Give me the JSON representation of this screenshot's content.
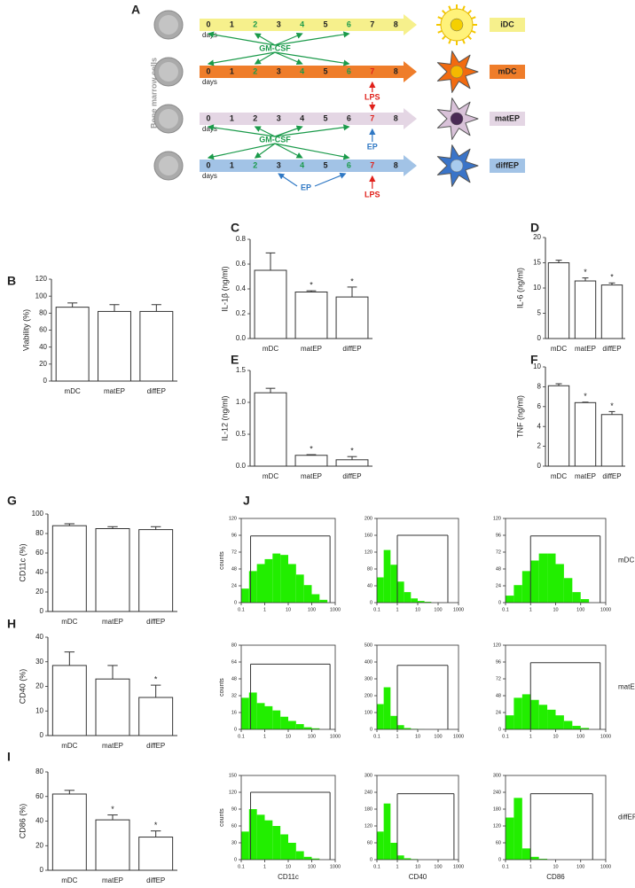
{
  "diagram": {
    "panel": "A",
    "side_label": "Bone marrow cells",
    "days_label": "days",
    "days": [
      0,
      1,
      2,
      3,
      4,
      5,
      6,
      7,
      8
    ],
    "cells": [
      "iDC",
      "mDC",
      "matEP",
      "diffEP"
    ],
    "annotations": [
      "GM-CSF",
      "LPS",
      "EP",
      "GM-CSF",
      "EP",
      "LPS"
    ]
  },
  "chart_data": [
    {
      "type": "bar",
      "panel": "B",
      "ylabel": "Viability (%)",
      "categories": [
        "mDC",
        "matEP",
        "diffEP"
      ],
      "values": [
        87,
        82,
        82
      ],
      "errors": [
        5,
        8,
        8
      ],
      "ylim": [
        0,
        120
      ],
      "yticks": [
        0,
        20,
        40,
        60,
        80,
        100,
        120
      ],
      "color": "#ffffff"
    },
    {
      "type": "bar",
      "panel": "C",
      "ylabel": "IL-1β (ng/ml)",
      "categories": [
        "mDC",
        "matEP",
        "diffEP"
      ],
      "values": [
        0.55,
        0.375,
        0.335
      ],
      "errors": [
        0.14,
        0.01,
        0.08
      ],
      "significant": [
        false,
        true,
        true
      ],
      "annotation": "*",
      "ylim": [
        0,
        0.8
      ],
      "yticks": [
        {
          "value": 0,
          "label": "0.0"
        },
        {
          "value": 0.2,
          "label": "0.2"
        },
        {
          "value": 0.4,
          "label": "0.4"
        },
        {
          "value": 0.6,
          "label": "0.6"
        },
        {
          "value": 0.8,
          "label": "0.8"
        }
      ],
      "color": "#ffffff"
    },
    {
      "type": "bar",
      "panel": "D",
      "ylabel": "IL-6 (ng/ml)",
      "categories": [
        "mDC",
        "matEP",
        "diffEP"
      ],
      "values": [
        15,
        11.4,
        10.6
      ],
      "errors": [
        0.5,
        0.6,
        0.4
      ],
      "significant": [
        false,
        true,
        true
      ],
      "annotation": "*",
      "ylim": [
        0,
        20
      ],
      "yticks": [
        0,
        5,
        10,
        15,
        20
      ],
      "color": "#ffffff"
    },
    {
      "type": "bar",
      "panel": "E",
      "ylabel": "IL-12 (ng/ml)",
      "categories": [
        "mDC",
        "matEP",
        "diffEP"
      ],
      "values": [
        1.15,
        0.17,
        0.1
      ],
      "errors": [
        0.07,
        0.01,
        0.05
      ],
      "significant": [
        false,
        true,
        true
      ],
      "annotation": "*",
      "ylim": [
        0,
        1.5
      ],
      "yticks": [
        {
          "value": 0,
          "label": "0.0"
        },
        {
          "value": 0.5,
          "label": "0.5"
        },
        {
          "value": 1,
          "label": "1.0"
        },
        {
          "value": 1.5,
          "label": "1.5"
        }
      ],
      "color": "#ffffff"
    },
    {
      "type": "bar",
      "panel": "F",
      "ylabel": "TNF (ng/ml)",
      "categories": [
        "mDC",
        "matEP",
        "diffEP"
      ],
      "values": [
        8.1,
        6.4,
        5.2
      ],
      "errors": [
        0.2,
        0.05,
        0.3
      ],
      "significant": [
        false,
        true,
        true
      ],
      "annotation": "*",
      "ylim": [
        0,
        10
      ],
      "yticks": [
        0,
        2,
        4,
        6,
        8,
        10
      ],
      "color": "#ffffff"
    },
    {
      "type": "bar",
      "panel": "G",
      "ylabel": "CD11c (%)",
      "categories": [
        "mDC",
        "matEP",
        "diffEP"
      ],
      "values": [
        88,
        85,
        84
      ],
      "errors": [
        2,
        2,
        3
      ],
      "ylim": [
        0,
        100
      ],
      "yticks": [
        0,
        20,
        40,
        60,
        80,
        100
      ],
      "color": "#ffffff"
    },
    {
      "type": "bar",
      "panel": "H",
      "ylabel": "CD40 (%)",
      "categories": [
        "mDC",
        "matEP",
        "diffEP"
      ],
      "values": [
        28.5,
        23,
        15.5
      ],
      "errors": [
        5.5,
        5.5,
        5
      ],
      "significant": [
        false,
        false,
        true
      ],
      "annotation": "*",
      "ylim": [
        0,
        40
      ],
      "yticks": [
        0,
        10,
        20,
        30,
        40
      ],
      "color": "#ffffff"
    },
    {
      "type": "bar",
      "panel": "I",
      "ylabel": "CD86 (%)",
      "categories": [
        "mDC",
        "matEP",
        "diffEP"
      ],
      "values": [
        62,
        41,
        27
      ],
      "errors": [
        3,
        4,
        5
      ],
      "significant": [
        false,
        true,
        true
      ],
      "annotation": "*",
      "ylim": [
        0,
        80
      ],
      "yticks": [
        0,
        20,
        40,
        60,
        80
      ],
      "color": "#ffffff"
    },
    {
      "type": "histogram",
      "panel": "J",
      "ylabel": "counts",
      "log_x": true,
      "xlim": [
        0.1,
        1000
      ],
      "xticks": [
        0.1,
        1,
        10,
        100,
        1000
      ],
      "ylim": [
        0,
        120
      ],
      "yticks": [
        0,
        24,
        48,
        72,
        96,
        120
      ],
      "bins": [
        0.1,
        0.215,
        0.464,
        1,
        2.15,
        4.64,
        10,
        21.5,
        46.4,
        100,
        215,
        464,
        1000
      ],
      "counts": [
        20,
        45,
        55,
        62,
        70,
        68,
        55,
        40,
        25,
        12,
        4,
        0
      ],
      "gate": [
        0.25,
        600
      ],
      "gate_level": 95,
      "color": "#22ee00"
    },
    {
      "type": "histogram",
      "log_x": true,
      "xlim": [
        0.1,
        1000
      ],
      "xticks": [
        0.1,
        1,
        10,
        100,
        1000
      ],
      "ylim": [
        0,
        200
      ],
      "yticks": [
        0,
        40,
        80,
        120,
        160,
        200
      ],
      "bins": [
        0.1,
        0.215,
        0.464,
        1,
        2.15,
        4.64,
        10,
        21.5,
        46.4,
        100,
        215,
        464,
        1000
      ],
      "counts": [
        60,
        125,
        90,
        50,
        25,
        10,
        4,
        2,
        0,
        0,
        0,
        0
      ],
      "gate": [
        1,
        300
      ],
      "gate_level": 160,
      "color": "#22ee00"
    },
    {
      "type": "histogram",
      "row_label": "mDC",
      "log_x": true,
      "xlim": [
        0.1,
        1000
      ],
      "xticks": [
        0.1,
        1,
        10,
        100,
        1000
      ],
      "ylim": [
        0,
        120
      ],
      "yticks": [
        0,
        24,
        48,
        72,
        96,
        120
      ],
      "bins": [
        0.1,
        0.215,
        0.464,
        1,
        2.15,
        4.64,
        10,
        21.5,
        46.4,
        100,
        215,
        464,
        1000
      ],
      "counts": [
        10,
        25,
        45,
        60,
        70,
        70,
        55,
        35,
        15,
        5,
        0,
        0
      ],
      "gate": [
        1,
        600
      ],
      "gate_level": 95,
      "color": "#22ee00"
    },
    {
      "type": "histogram",
      "ylabel": "counts",
      "log_x": true,
      "xlim": [
        0.1,
        1000
      ],
      "xticks": [
        0.1,
        1,
        10,
        100,
        1000
      ],
      "ylim": [
        0,
        80
      ],
      "yticks": [
        0,
        16,
        32,
        48,
        64,
        80
      ],
      "bins": [
        0.1,
        0.215,
        0.464,
        1,
        2.15,
        4.64,
        10,
        21.5,
        46.4,
        100,
        215,
        464,
        1000
      ],
      "counts": [
        30,
        35,
        25,
        22,
        18,
        12,
        8,
        5,
        2,
        1,
        0,
        0
      ],
      "gate": [
        0.25,
        600
      ],
      "gate_level": 62,
      "color": "#22ee00"
    },
    {
      "type": "histogram",
      "log_x": true,
      "xlim": [
        0.1,
        1000
      ],
      "xticks": [
        0.1,
        1,
        10,
        100,
        1000
      ],
      "ylim": [
        0,
        500
      ],
      "yticks": [
        0,
        100,
        200,
        300,
        400,
        500
      ],
      "bins": [
        0.1,
        0.215,
        0.464,
        1,
        2.15,
        4.64,
        10,
        21.5,
        46.4,
        100,
        215,
        464,
        1000
      ],
      "counts": [
        150,
        250,
        80,
        25,
        8,
        3,
        1,
        0,
        0,
        0,
        0,
        0
      ],
      "gate": [
        1,
        300
      ],
      "gate_level": 380,
      "color": "#22ee00"
    },
    {
      "type": "histogram",
      "row_label": "matEP",
      "log_x": true,
      "xlim": [
        0.1,
        1000
      ],
      "xticks": [
        0.1,
        1,
        10,
        100,
        1000
      ],
      "ylim": [
        0,
        120
      ],
      "yticks": [
        0,
        24,
        48,
        72,
        96,
        120
      ],
      "bins": [
        0.1,
        0.215,
        0.464,
        1,
        2.15,
        4.64,
        10,
        21.5,
        46.4,
        100,
        215,
        464,
        1000
      ],
      "counts": [
        20,
        45,
        50,
        42,
        35,
        28,
        20,
        12,
        5,
        2,
        0,
        0
      ],
      "gate": [
        1,
        600
      ],
      "gate_level": 95,
      "color": "#22ee00"
    },
    {
      "type": "histogram",
      "ylabel": "counts",
      "xlabel": "CD11c",
      "log_x": true,
      "xlim": [
        0.1,
        1000
      ],
      "xticks": [
        0.1,
        1,
        10,
        100,
        1000
      ],
      "ylim": [
        0,
        150
      ],
      "yticks": [
        0,
        30,
        60,
        90,
        120,
        150
      ],
      "bins": [
        0.1,
        0.215,
        0.464,
        1,
        2.15,
        4.64,
        10,
        21.5,
        46.4,
        100,
        215,
        464,
        1000
      ],
      "counts": [
        50,
        90,
        80,
        70,
        60,
        45,
        30,
        15,
        5,
        2,
        0,
        0
      ],
      "gate": [
        0.25,
        600
      ],
      "gate_level": 120,
      "color": "#22ee00"
    },
    {
      "type": "histogram",
      "xlabel": "CD40",
      "log_x": true,
      "xlim": [
        0.1,
        1000
      ],
      "xticks": [
        0.1,
        1,
        10,
        100,
        1000
      ],
      "ylim": [
        0,
        300
      ],
      "yticks": [
        0,
        60,
        120,
        180,
        240,
        300
      ],
      "bins": [
        0.1,
        0.215,
        0.464,
        1,
        2.15,
        4.64,
        10,
        21.5,
        46.4,
        100,
        215,
        464,
        1000
      ],
      "counts": [
        100,
        200,
        60,
        15,
        5,
        2,
        0,
        0,
        0,
        0,
        0,
        0
      ],
      "gate": [
        1,
        600
      ],
      "gate_level": 235,
      "color": "#22ee00"
    },
    {
      "type": "histogram",
      "row_label": "diffEP",
      "xlabel": "CD86",
      "log_x": true,
      "xlim": [
        0.1,
        1000
      ],
      "xticks": [
        0.1,
        1,
        10,
        100,
        1000
      ],
      "ylim": [
        0,
        300
      ],
      "yticks": [
        0,
        60,
        120,
        180,
        240,
        300
      ],
      "bins": [
        0.1,
        0.215,
        0.464,
        1,
        2.15,
        4.64,
        10,
        21.5,
        46.4,
        100,
        215,
        464,
        1000
      ],
      "counts": [
        150,
        220,
        40,
        10,
        3,
        0,
        0,
        0,
        0,
        0,
        0,
        0
      ],
      "gate": [
        1,
        300
      ],
      "gate_level": 235,
      "color": "#22ee00"
    }
  ]
}
